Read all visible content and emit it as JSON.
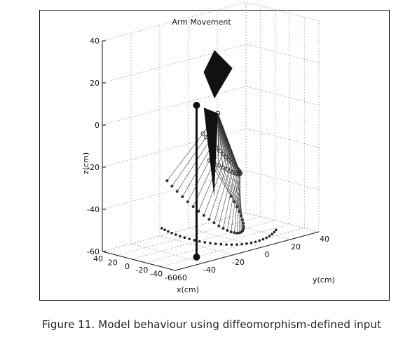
{
  "chart_data": {
    "type": "scatter",
    "title": "Arm Movement",
    "xlabel": "x(cm)",
    "ylabel": "y(cm)",
    "zlabel": "z(cm)",
    "xlim": [
      -60,
      40
    ],
    "ylim": [
      -60,
      40
    ],
    "zlim": [
      -60,
      40
    ],
    "x_ticks": [
      "40",
      "20",
      "0",
      "-20",
      "-40",
      "-60"
    ],
    "y_ticks": [
      "40",
      "20",
      "0",
      "-20",
      "-40",
      "-60"
    ],
    "z_ticks": [
      "40",
      "20",
      "0",
      "-20",
      "-40",
      "-60"
    ],
    "grid": true
  },
  "caption": "Figure 11. Model behaviour using diffeomorphism-defined input"
}
